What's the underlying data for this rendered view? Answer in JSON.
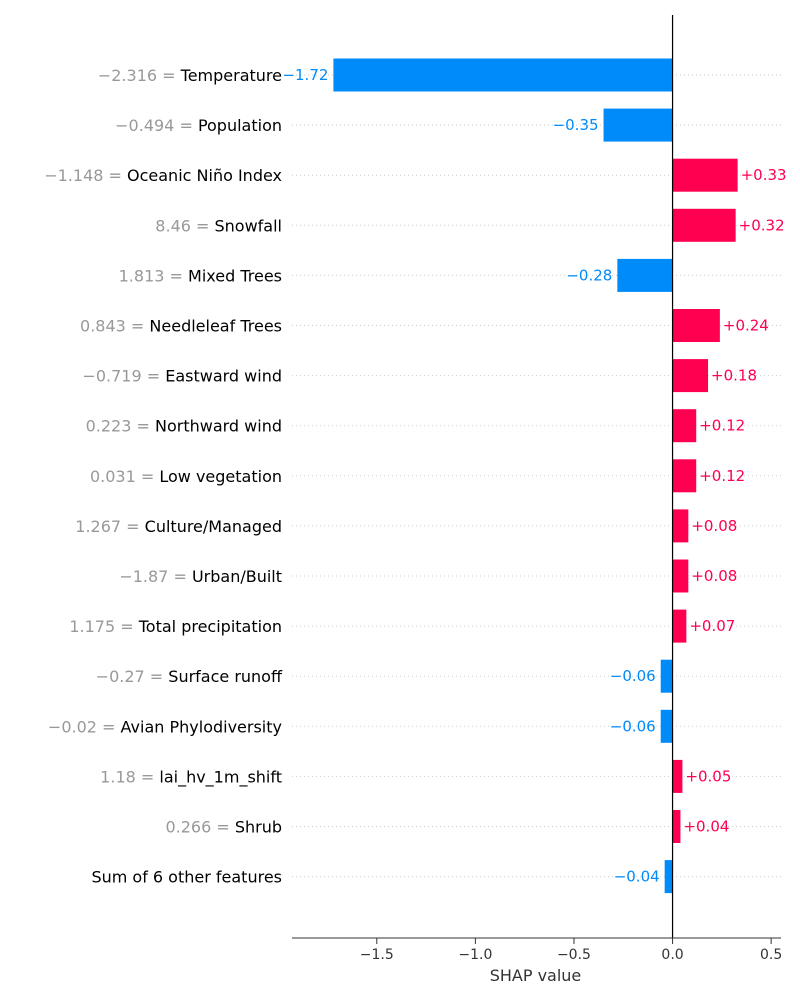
{
  "chart_data": {
    "type": "bar",
    "orientation": "horizontal",
    "title": "",
    "xlabel": "SHAP value",
    "ylabel": "",
    "xlim": [
      -1.93,
      0.55
    ],
    "xticks": [
      -1.5,
      -1.0,
      -0.5,
      0.0,
      0.5
    ],
    "xtick_labels": [
      "−1.5",
      "−1.0",
      "−0.5",
      "0.0",
      "0.5"
    ],
    "grid": "dotted horizontal row lines",
    "colors": {
      "positive": "#ff0051",
      "negative": "#008bfb",
      "feature_value": "#999999"
    },
    "rows": [
      {
        "value_text": "−2.316",
        "feature": "Temperature",
        "shap": -1.72,
        "label": "−1.72"
      },
      {
        "value_text": "−0.494",
        "feature": "Population",
        "shap": -0.35,
        "label": "−0.35"
      },
      {
        "value_text": "−1.148",
        "feature": "Oceanic Niño Index",
        "shap": 0.33,
        "label": "+0.33"
      },
      {
        "value_text": "8.46",
        "feature": "Snowfall",
        "shap": 0.32,
        "label": "+0.32"
      },
      {
        "value_text": "1.813",
        "feature": "Mixed Trees",
        "shap": -0.28,
        "label": "−0.28"
      },
      {
        "value_text": "0.843",
        "feature": "Needleleaf Trees",
        "shap": 0.24,
        "label": "+0.24"
      },
      {
        "value_text": "−0.719",
        "feature": "Eastward wind",
        "shap": 0.18,
        "label": "+0.18"
      },
      {
        "value_text": "0.223",
        "feature": "Northward wind",
        "shap": 0.12,
        "label": "+0.12"
      },
      {
        "value_text": "0.031",
        "feature": "Low vegetation",
        "shap": 0.12,
        "label": "+0.12"
      },
      {
        "value_text": "1.267",
        "feature": "Culture/Managed",
        "shap": 0.08,
        "label": "+0.08"
      },
      {
        "value_text": "−1.87",
        "feature": "Urban/Built",
        "shap": 0.08,
        "label": "+0.08"
      },
      {
        "value_text": "1.175",
        "feature": "Total precipitation",
        "shap": 0.07,
        "label": "+0.07"
      },
      {
        "value_text": "−0.27",
        "feature": "Surface runoff",
        "shap": -0.06,
        "label": "−0.06"
      },
      {
        "value_text": "−0.02",
        "feature": "Avian Phylodiversity",
        "shap": -0.06,
        "label": "−0.06"
      },
      {
        "value_text": "1.18",
        "feature": "lai_hv_1m_shift",
        "shap": 0.05,
        "label": "+0.05"
      },
      {
        "value_text": "0.266",
        "feature": "Shrub",
        "shap": 0.04,
        "label": "+0.04"
      },
      {
        "value_text": "",
        "feature": "Sum of 6 other features",
        "shap": -0.04,
        "label": "−0.04"
      }
    ]
  }
}
